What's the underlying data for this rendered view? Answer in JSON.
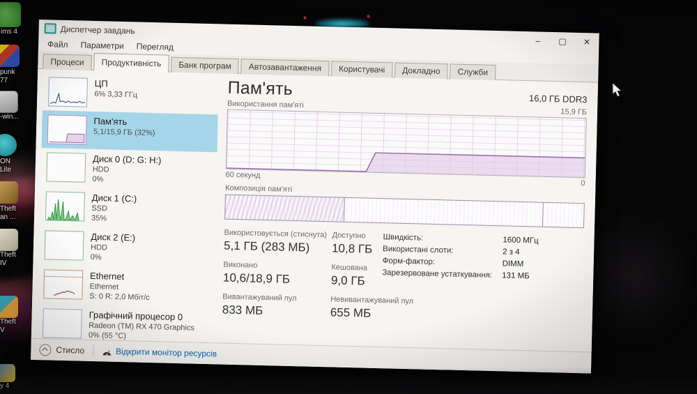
{
  "window": {
    "title": "Диспетчер завдань",
    "controls": {
      "minimize": "–",
      "maximize": "▢",
      "close": "✕"
    }
  },
  "menu": {
    "items": [
      "Файл",
      "Параметри",
      "Перегляд"
    ]
  },
  "tabs": [
    "Процеси",
    "Продуктивність",
    "Банк програм",
    "Автозавантаження",
    "Користувачі",
    "Докладно",
    "Служби"
  ],
  "sidebar": {
    "items": [
      {
        "title": "ЦП",
        "l1": "6% 3,33 ГГц",
        "l2": ""
      },
      {
        "title": "Пам'ять",
        "l1": "5,1/15,9 ГБ (32%)",
        "l2": ""
      },
      {
        "title": "Диск 0 (D: G: H:)",
        "l1": "HDD",
        "l2": "0%"
      },
      {
        "title": "Диск 1 (C:)",
        "l1": "SSD",
        "l2": "35%"
      },
      {
        "title": "Диск 2 (E:)",
        "l1": "HDD",
        "l2": "0%"
      },
      {
        "title": "Ethernet",
        "l1": "Ethernet",
        "l2": "S: 0 R: 2,0 Мбіт/с"
      },
      {
        "title": "Графічний процесор 0",
        "l1": "Radeon (TM) RX 470 Graphics",
        "l2": "0% (55 °C)"
      }
    ]
  },
  "main": {
    "title": "Пам'ять",
    "capacity": "16,0 ГБ DDR3",
    "usage_graph": {
      "label": "Використання пам'яті",
      "max_label": "15,9 ГБ",
      "time_label": "60 секунд",
      "right_label": "0",
      "plateau_percent": 33,
      "jump_at_percent": 39
    },
    "composition": {
      "label": "Композиція пам'яті",
      "in_use_percent": 33,
      "standby_divider_percent": 88.5
    },
    "stats": [
      {
        "label": "Використовується (стиснута)",
        "value": "5,1 ГБ (283 МБ)"
      },
      {
        "label": "Доступно",
        "value": "10,8 ГБ"
      },
      {
        "label": "Виконано",
        "value": "10,6/18,9 ГБ"
      },
      {
        "label": "Кешована",
        "value": "9,0 ГБ"
      },
      {
        "label": "Вивантажуваний пул",
        "value": "833 МБ"
      },
      {
        "label": "Невивантажуваний пул",
        "value": "655 МБ"
      }
    ],
    "details": [
      {
        "label": "Швидкість:",
        "value": "1600 МГц"
      },
      {
        "label": "Використані слоти:",
        "value": "2 з 4"
      },
      {
        "label": "Форм-фактор:",
        "value": "DIMM"
      },
      {
        "label": "Зарезервоване устаткування:",
        "value": "131 МБ"
      }
    ]
  },
  "footer": {
    "collapse_label": "Стисло",
    "link_label": "Відкрити монітор ресурсів"
  },
  "desktop": {
    "icons": [
      {
        "l1": "ims 4",
        "l2": ""
      },
      {
        "l1": "punk",
        "l2": "77"
      },
      {
        "l1": "-win...",
        "l2": ""
      },
      {
        "l1": "ON",
        "l2": "Lite"
      },
      {
        "l1": "Theft",
        "l2": "an ..."
      },
      {
        "l1": "Theft",
        "l2": "IV"
      },
      {
        "l1": "Theft",
        "l2": "V"
      },
      {
        "l1": "y 4",
        "l2": ""
      }
    ]
  },
  "colors": {
    "selected_item": "#a5d5e8",
    "memory_accent": "#9a6fae",
    "link": "#0a64ad",
    "disk_green": "#3da84a",
    "net_brown": "#8b4a3e",
    "cpu_blue": "#4a7ab5"
  }
}
